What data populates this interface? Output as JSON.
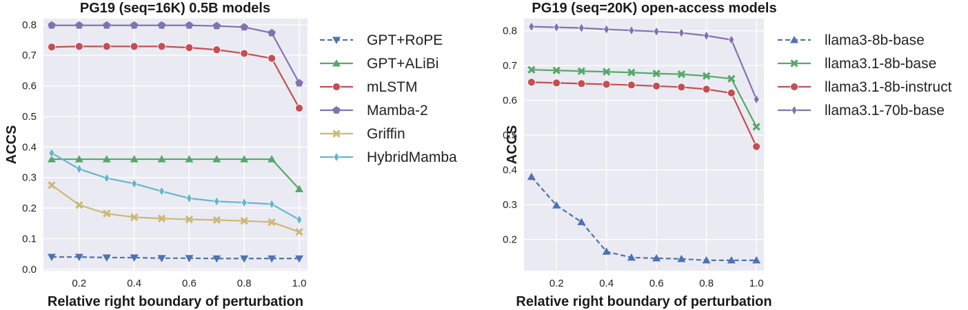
{
  "chart_data": [
    {
      "type": "line",
      "title": "PG19 (seq=16K) 0.5B models",
      "xlabel": "Relative right boundary of perturbation",
      "ylabel": "ACCS",
      "xlim": [
        0.07,
        1.03
      ],
      "ylim": [
        -0.005,
        0.82
      ],
      "x_ticks": [
        0.2,
        0.4,
        0.6,
        0.8,
        1.0
      ],
      "x_tick_labels": [
        "0.2",
        "0.4",
        "0.6",
        "0.8",
        "1.0"
      ],
      "y_ticks": [
        0.0,
        0.1,
        0.2,
        0.3,
        0.4,
        0.5,
        0.6,
        0.7,
        0.8
      ],
      "y_tick_labels": [
        "0.0",
        "0.1",
        "0.2",
        "0.3",
        "0.4",
        "0.5",
        "0.6",
        "0.7",
        "0.8"
      ],
      "grid": true,
      "legend_position": "outside-right",
      "x": [
        0.1,
        0.2,
        0.3,
        0.4,
        0.5,
        0.6,
        0.7,
        0.8,
        0.9,
        1.0
      ],
      "series": [
        {
          "name": "GPT+RoPE",
          "color": "#4c72b0",
          "marker": "triangle-down",
          "dash": true,
          "values": [
            0.04,
            0.04,
            0.038,
            0.038,
            0.036,
            0.036,
            0.035,
            0.035,
            0.035,
            0.035
          ]
        },
        {
          "name": "GPT+ALiBi",
          "color": "#55a868",
          "marker": "triangle-up",
          "dash": false,
          "values": [
            0.36,
            0.36,
            0.36,
            0.36,
            0.36,
            0.36,
            0.36,
            0.36,
            0.36,
            0.262
          ]
        },
        {
          "name": "mLSTM",
          "color": "#c44e52",
          "marker": "circle",
          "dash": false,
          "values": [
            0.727,
            0.729,
            0.729,
            0.729,
            0.729,
            0.725,
            0.718,
            0.706,
            0.69,
            0.527
          ]
        },
        {
          "name": "Mamba-2",
          "color": "#8172b2",
          "marker": "pentagon",
          "dash": false,
          "values": [
            0.798,
            0.798,
            0.798,
            0.798,
            0.798,
            0.798,
            0.796,
            0.792,
            0.773,
            0.609
          ]
        },
        {
          "name": "Griffin",
          "color": "#ccb974",
          "marker": "x",
          "dash": false,
          "values": [
            0.275,
            0.21,
            0.182,
            0.17,
            0.166,
            0.163,
            0.161,
            0.158,
            0.154,
            0.122
          ]
        },
        {
          "name": "HybridMamba",
          "color": "#64b5cd",
          "marker": "thin-diamond",
          "dash": false,
          "values": [
            0.38,
            0.328,
            0.298,
            0.28,
            0.255,
            0.232,
            0.222,
            0.218,
            0.213,
            0.162
          ]
        }
      ]
    },
    {
      "type": "line",
      "title": "PG19 (seq=20K) open-access models",
      "xlabel": "Relative right boundary of perturbation",
      "ylabel": "ACCS",
      "xlim": [
        0.07,
        1.03
      ],
      "ylim": [
        0.11,
        0.835
      ],
      "x_ticks": [
        0.2,
        0.4,
        0.6,
        0.8,
        1.0
      ],
      "x_tick_labels": [
        "0.2",
        "0.4",
        "0.6",
        "0.8",
        "1.0"
      ],
      "y_ticks": [
        0.2,
        0.3,
        0.4,
        0.5,
        0.6,
        0.7,
        0.8
      ],
      "y_tick_labels": [
        "0.2",
        "0.3",
        "0.4",
        "0.5",
        "0.6",
        "0.7",
        "0.8"
      ],
      "grid": true,
      "legend_position": "outside-right",
      "x": [
        0.1,
        0.2,
        0.3,
        0.4,
        0.5,
        0.6,
        0.7,
        0.8,
        0.9,
        1.0
      ],
      "series": [
        {
          "name": "llama3-8b-base",
          "color": "#4c72b0",
          "marker": "triangle-up",
          "dash": true,
          "values": [
            0.38,
            0.298,
            0.25,
            0.165,
            0.148,
            0.146,
            0.144,
            0.14,
            0.14,
            0.14
          ]
        },
        {
          "name": "llama3.1-8b-base",
          "color": "#55a868",
          "marker": "x",
          "dash": false,
          "values": [
            0.688,
            0.686,
            0.684,
            0.682,
            0.68,
            0.677,
            0.675,
            0.67,
            0.662,
            0.524
          ]
        },
        {
          "name": "llama3.1-8b-instruct",
          "color": "#c44e52",
          "marker": "circle",
          "dash": false,
          "values": [
            0.652,
            0.65,
            0.648,
            0.646,
            0.644,
            0.641,
            0.638,
            0.632,
            0.621,
            0.467
          ]
        },
        {
          "name": "llama3.1-70b-base",
          "color": "#8172b2",
          "marker": "thin-diamond",
          "dash": false,
          "values": [
            0.812,
            0.81,
            0.808,
            0.804,
            0.801,
            0.798,
            0.794,
            0.786,
            0.774,
            0.603
          ]
        }
      ]
    }
  ]
}
